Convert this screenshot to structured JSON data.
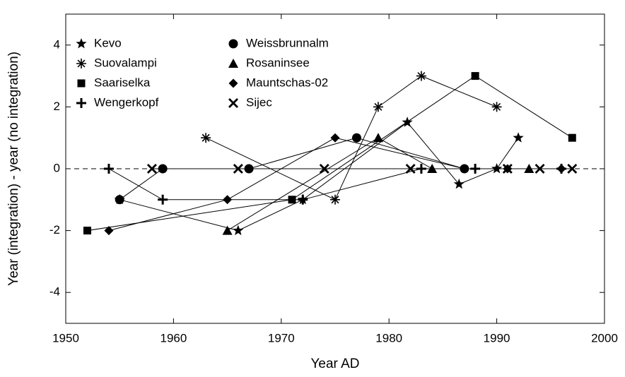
{
  "chart_data": {
    "type": "line",
    "xlabel": "Year AD",
    "ylabel": "Year (integration) - year (no integration)",
    "xlim": [
      1950,
      2000
    ],
    "xticks": [
      1950,
      1960,
      1970,
      1980,
      1990,
      2000
    ],
    "ylim": [
      -5,
      5
    ],
    "yticks": [
      -4,
      -2,
      0,
      2,
      4
    ],
    "reference_line": 0,
    "legend": "upper left",
    "series": [
      {
        "name": "Kevo",
        "color": "#000000",
        "marker": "star",
        "x": [
          1955,
          1966,
          1972,
          1981.7,
          1986.5,
          1990,
          1992
        ],
        "values": [
          -1,
          -2,
          -1,
          1.5,
          -0.5,
          0,
          1
        ]
      },
      {
        "name": "Suovalampi",
        "color": "#000000",
        "marker": "asterisk",
        "x": [
          1963,
          1975,
          1979,
          1983,
          1990
        ],
        "values": [
          1,
          -1,
          2,
          3,
          2
        ]
      },
      {
        "name": "Saariselka",
        "color": "#000000",
        "marker": "square",
        "x": [
          1952,
          1971,
          1988,
          1997
        ],
        "values": [
          -2,
          -1,
          3,
          1
        ]
      },
      {
        "name": "Wengerkopf",
        "color": "#000000",
        "marker": "plus",
        "x": [
          1954,
          1959,
          1972,
          1983,
          1988,
          1996
        ],
        "values": [
          0,
          -1,
          -1,
          0,
          0,
          0
        ]
      },
      {
        "name": "Weissbrunnalm",
        "color": "#000000",
        "marker": "circle",
        "x": [
          1955,
          1959,
          1967,
          1977,
          1987
        ],
        "values": [
          -1,
          0,
          0,
          1,
          0
        ]
      },
      {
        "name": "Rosaninsee",
        "color": "#000000",
        "marker": "triangle",
        "x": [
          1965,
          1979,
          1984,
          1993
        ],
        "values": [
          -2,
          1,
          0,
          0
        ]
      },
      {
        "name": "Mauntschas-02",
        "color": "#000000",
        "marker": "diamond",
        "x": [
          1954,
          1965,
          1975,
          1987,
          1991,
          1996
        ],
        "values": [
          -2,
          -1,
          1,
          0,
          0,
          0
        ]
      },
      {
        "name": "Sijec",
        "color": "#000000",
        "marker": "x",
        "x": [
          1958,
          1966,
          1974,
          1982,
          1991,
          1994,
          1997
        ],
        "values": [
          0,
          0,
          0,
          0,
          0,
          0,
          0
        ]
      }
    ]
  }
}
